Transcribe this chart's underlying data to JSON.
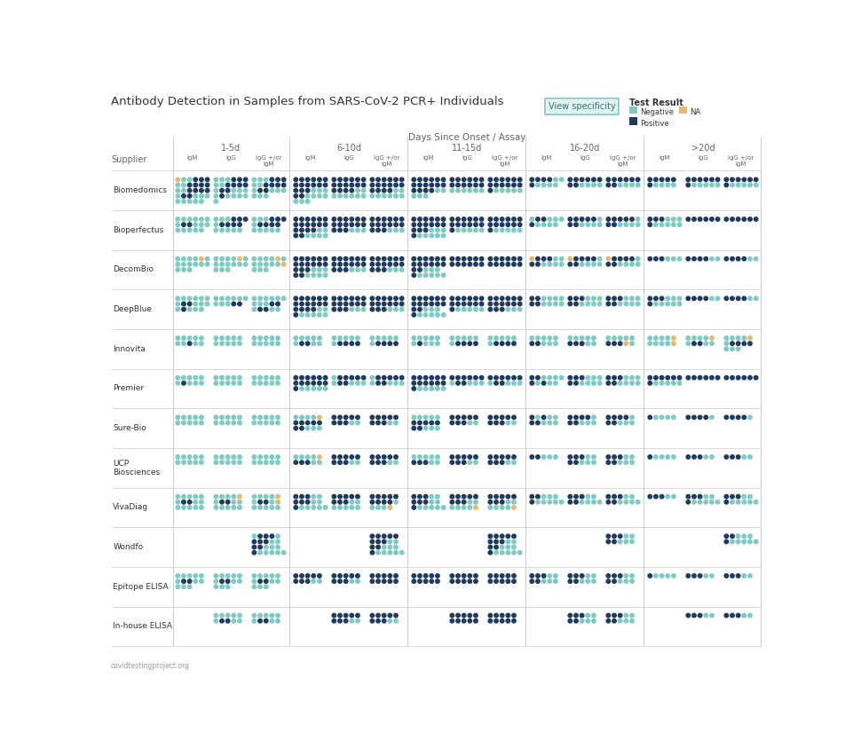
{
  "title": "Antibody Detection in Samples from SARS-CoV-2 PCR+ Individuals",
  "subtitle": "Days Since Onset / Assay",
  "legend_title": "Test Result",
  "button_text": "View specificity",
  "day_groups": [
    "1-5d",
    "6-10d",
    "11-15d",
    "16-20d",
    ">20d"
  ],
  "assay_labels": [
    "IgM",
    "IgG",
    "IgG +/or\nIgM"
  ],
  "suppliers": [
    "Biomedomics",
    "Bioperfectus",
    "DecomBio",
    "DeepBlue",
    "Innovita",
    "Premier",
    "Sure-Bio",
    "UCP\nBiosciences",
    "VivaDiag",
    "Wondfo",
    "Epitope ELISA",
    "In-house ELISA"
  ],
  "col_label": "Supplier",
  "footer": "covidtestingproject.org",
  "col_neg": "#7fcac3",
  "col_pos": "#1e3a5f",
  "col_na": "#e8b96a",
  "col_line": "#cccccc",
  "col_title": "#333333",
  "col_sub": "#666666",
  "btn_edge": "#7fcac3",
  "btn_face": "#e4f4f2",
  "btn_text_color": "#2a7a74"
}
